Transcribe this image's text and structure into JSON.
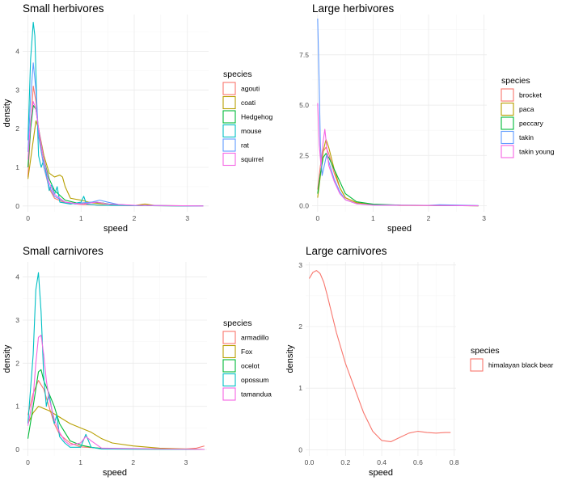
{
  "chart_data": [
    {
      "type": "line",
      "title": "Small herbivores",
      "xlabel": "speed",
      "ylabel": "density",
      "xlim": [
        -0.1,
        3.4
      ],
      "ylim": [
        -0.15,
        4.95
      ],
      "xticks": [
        0,
        1,
        2,
        3
      ],
      "yticks": [
        0,
        1,
        2,
        3,
        4
      ],
      "grid": true,
      "legend_position": "right",
      "legend_title": "species",
      "series": [
        {
          "name": "agouti",
          "color": "#F8766D",
          "x": [
            0,
            0.05,
            0.1,
            0.15,
            0.2,
            0.3,
            0.4,
            0.5,
            0.7,
            1.0,
            1.5,
            2.0,
            3.3
          ],
          "y": [
            0.75,
            2.0,
            3.1,
            2.7,
            1.9,
            1.0,
            0.45,
            0.2,
            0.08,
            0.04,
            0.02,
            0.01,
            0
          ]
        },
        {
          "name": "coati",
          "color": "#B79F00",
          "x": [
            0,
            0.05,
            0.1,
            0.15,
            0.2,
            0.3,
            0.4,
            0.5,
            0.6,
            0.65,
            0.7,
            0.8,
            1.0,
            1.2,
            1.5,
            2.0,
            2.2,
            2.4,
            3.3
          ],
          "y": [
            0.7,
            1.2,
            1.7,
            2.2,
            2.0,
            1.3,
            0.85,
            0.75,
            0.8,
            0.75,
            0.5,
            0.2,
            0.15,
            0.08,
            0.05,
            0.01,
            0.05,
            0.01,
            0
          ]
        },
        {
          "name": "Hedgehog",
          "color": "#00BA38",
          "x": [
            0,
            0.05,
            0.1,
            0.15,
            0.2,
            0.3,
            0.4,
            0.5,
            0.7,
            1.0,
            1.2,
            1.4,
            1.6,
            2.0,
            3.3
          ],
          "y": [
            1.0,
            2.0,
            2.6,
            2.5,
            2.0,
            1.2,
            0.7,
            0.4,
            0.15,
            0.05,
            0.1,
            0.08,
            0.03,
            0.01,
            0
          ]
        },
        {
          "name": "mouse",
          "color": "#00BFC4",
          "x": [
            0,
            0.05,
            0.1,
            0.13,
            0.17,
            0.2,
            0.25,
            0.3,
            0.35,
            0.4,
            0.45,
            0.5,
            0.55,
            0.6,
            0.8,
            1.0,
            1.05,
            1.1,
            1.3,
            3.3
          ],
          "y": [
            1.7,
            3.8,
            4.75,
            4.4,
            2.5,
            1.3,
            1.0,
            1.2,
            0.8,
            0.4,
            0.55,
            0.3,
            0.5,
            0.1,
            0.05,
            0.1,
            0.25,
            0.05,
            0.02,
            0
          ]
        },
        {
          "name": "rat",
          "color": "#619CFF",
          "x": [
            0,
            0.05,
            0.1,
            0.15,
            0.2,
            0.3,
            0.4,
            0.5,
            0.7,
            0.9,
            1.0,
            1.2,
            1.35,
            1.5,
            1.7,
            2.0,
            3.3
          ],
          "y": [
            1.4,
            2.8,
            3.7,
            3.0,
            1.8,
            1.0,
            0.5,
            0.25,
            0.1,
            0.05,
            0.08,
            0.1,
            0.15,
            0.1,
            0.04,
            0.01,
            0
          ]
        },
        {
          "name": "squirrel",
          "color": "#F564E3",
          "x": [
            0,
            0.05,
            0.1,
            0.15,
            0.2,
            0.3,
            0.4,
            0.5,
            0.7,
            1.0,
            1.3,
            1.5,
            2.0,
            3.3
          ],
          "y": [
            1.2,
            2.2,
            2.7,
            2.5,
            2.0,
            1.2,
            0.6,
            0.3,
            0.1,
            0.05,
            0.1,
            0.05,
            0.02,
            0
          ]
        }
      ]
    },
    {
      "type": "line",
      "title": "Large herbivores",
      "xlabel": "speed",
      "ylabel": "",
      "xlim": [
        -0.1,
        3.05
      ],
      "ylim": [
        -0.3,
        9.5
      ],
      "xticks": [
        0,
        1,
        2,
        3
      ],
      "yticks": [
        0,
        2.5,
        5,
        7.5
      ],
      "ytick_labels": [
        "0.0",
        "2.5",
        "5.0",
        "7.5"
      ],
      "grid": true,
      "legend_position": "right",
      "legend_title": "species",
      "series": [
        {
          "name": "brocket",
          "color": "#F8766D",
          "x": [
            0,
            0.05,
            0.1,
            0.15,
            0.2,
            0.3,
            0.4,
            0.5,
            0.7,
            1.0,
            1.5,
            2.9
          ],
          "y": [
            0.8,
            2.0,
            2.7,
            2.9,
            2.6,
            1.6,
            0.9,
            0.4,
            0.15,
            0.05,
            0.02,
            0
          ]
        },
        {
          "name": "paca",
          "color": "#B79F00",
          "x": [
            0,
            0.05,
            0.1,
            0.15,
            0.2,
            0.3,
            0.4,
            0.5,
            0.7,
            1.0,
            1.5,
            2.9
          ],
          "y": [
            0.4,
            1.5,
            2.7,
            3.3,
            2.9,
            1.8,
            0.9,
            0.4,
            0.15,
            0.05,
            0.02,
            0
          ]
        },
        {
          "name": "peccary",
          "color": "#00BA38",
          "x": [
            0,
            0.05,
            0.1,
            0.15,
            0.2,
            0.3,
            0.4,
            0.5,
            0.7,
            1.0,
            1.5,
            2.9
          ],
          "y": [
            0.6,
            1.6,
            2.4,
            2.6,
            2.4,
            1.8,
            1.2,
            0.6,
            0.2,
            0.08,
            0.03,
            0
          ]
        },
        {
          "name": "takin",
          "color": "#619CFF",
          "x": [
            0,
            0.02,
            0.05,
            0.08,
            0.12,
            0.16,
            0.2,
            0.3,
            0.4,
            0.5,
            0.7,
            1.0,
            2.0,
            2.2,
            2.9
          ],
          "y": [
            9.3,
            7.0,
            3.0,
            1.5,
            2.0,
            2.5,
            2.2,
            1.3,
            0.7,
            0.3,
            0.1,
            0.04,
            0.02,
            0.05,
            0.01
          ]
        },
        {
          "name": "takin young",
          "color": "#F564E3",
          "x": [
            0,
            0.03,
            0.06,
            0.1,
            0.13,
            0.16,
            0.2,
            0.3,
            0.4,
            0.5,
            0.7,
            1.0,
            2.9
          ],
          "y": [
            5.1,
            3.0,
            2.0,
            3.2,
            3.8,
            3.0,
            2.0,
            1.2,
            0.6,
            0.3,
            0.1,
            0.03,
            0
          ]
        }
      ]
    },
    {
      "type": "line",
      "title": "Small carnivores",
      "xlabel": "speed",
      "ylabel": "density",
      "xlim": [
        -0.1,
        3.4
      ],
      "ylim": [
        -0.15,
        4.35
      ],
      "xticks": [
        0,
        1,
        2,
        3
      ],
      "yticks": [
        0,
        1,
        2,
        3,
        4
      ],
      "grid": true,
      "legend_position": "right",
      "legend_title": "species",
      "series": [
        {
          "name": "armadillo",
          "color": "#F8766D",
          "x": [
            0,
            0.1,
            0.2,
            0.3,
            0.4,
            0.5,
            0.6,
            0.8,
            1.0,
            1.5,
            2.0,
            3.0,
            3.2,
            3.35
          ],
          "y": [
            0.8,
            1.3,
            1.6,
            1.4,
            1.0,
            0.6,
            0.35,
            0.15,
            0.06,
            0.02,
            0.01,
            0.01,
            0.03,
            0.08
          ]
        },
        {
          "name": "Fox",
          "color": "#B79F00",
          "x": [
            0,
            0.1,
            0.2,
            0.3,
            0.4,
            0.6,
            0.8,
            1.0,
            1.2,
            1.4,
            1.6,
            2.0,
            2.5,
            3.0,
            3.35
          ],
          "y": [
            0.6,
            0.85,
            1.0,
            0.95,
            0.9,
            0.75,
            0.6,
            0.5,
            0.4,
            0.25,
            0.15,
            0.08,
            0.03,
            0.01,
            0
          ]
        },
        {
          "name": "ocelot",
          "color": "#00BA38",
          "x": [
            0,
            0.1,
            0.2,
            0.25,
            0.3,
            0.4,
            0.5,
            0.6,
            0.7,
            0.8,
            1.0,
            1.2,
            1.4,
            1.6,
            3.35
          ],
          "y": [
            0.25,
            1.0,
            1.8,
            1.85,
            1.6,
            1.3,
            1.0,
            0.6,
            0.4,
            0.2,
            0.1,
            0.05,
            0.02,
            0.01,
            0
          ]
        },
        {
          "name": "opossum",
          "color": "#00BFC4",
          "x": [
            0,
            0.1,
            0.15,
            0.2,
            0.25,
            0.3,
            0.35,
            0.4,
            0.5,
            0.55,
            0.6,
            0.7,
            0.8,
            1.0,
            1.1,
            1.2,
            1.4,
            3.35
          ],
          "y": [
            0.6,
            2.2,
            3.7,
            4.1,
            3.2,
            1.7,
            1.0,
            1.3,
            0.6,
            0.8,
            0.3,
            0.15,
            0.05,
            0.05,
            0.35,
            0.05,
            0.01,
            0
          ]
        },
        {
          "name": "tamandua",
          "color": "#F564E3",
          "x": [
            0,
            0.1,
            0.15,
            0.2,
            0.25,
            0.3,
            0.35,
            0.4,
            0.5,
            0.6,
            0.7,
            0.8,
            1.0,
            1.1,
            1.2,
            1.4,
            3.35
          ],
          "y": [
            0.55,
            1.2,
            2.0,
            2.6,
            2.65,
            2.2,
            1.6,
            1.2,
            0.7,
            0.4,
            0.2,
            0.1,
            0.15,
            0.3,
            0.2,
            0.03,
            0
          ]
        }
      ]
    },
    {
      "type": "line",
      "title": "Large carnivores",
      "xlabel": "speed",
      "ylabel": "density",
      "xlim": [
        -0.02,
        0.81
      ],
      "ylim": [
        -0.1,
        3.05
      ],
      "xticks": [
        0,
        0.2,
        0.4,
        0.6,
        0.8
      ],
      "xtick_labels": [
        "0.0",
        "0.2",
        "0.4",
        "0.6",
        "0.8"
      ],
      "yticks": [
        0,
        1,
        2,
        3
      ],
      "grid": true,
      "legend_position": "right",
      "legend_title": "species",
      "series": [
        {
          "name": "himalayan black bear",
          "color": "#F8766D",
          "x": [
            0,
            0.02,
            0.04,
            0.06,
            0.08,
            0.1,
            0.15,
            0.2,
            0.25,
            0.3,
            0.35,
            0.4,
            0.45,
            0.5,
            0.55,
            0.6,
            0.65,
            0.7,
            0.75,
            0.78
          ],
          "y": [
            2.78,
            2.88,
            2.91,
            2.86,
            2.72,
            2.5,
            1.9,
            1.4,
            1.0,
            0.6,
            0.3,
            0.15,
            0.13,
            0.2,
            0.27,
            0.3,
            0.28,
            0.27,
            0.28,
            0.28
          ]
        }
      ]
    }
  ]
}
